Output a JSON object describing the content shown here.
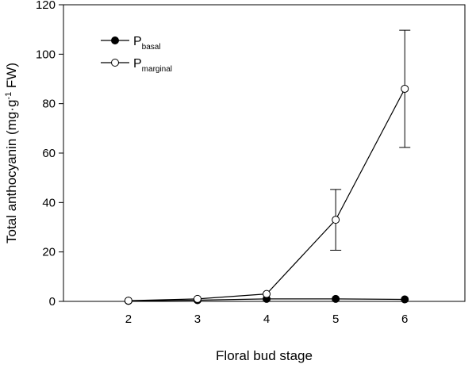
{
  "chart_data": {
    "type": "line",
    "xlabel": "Floral bud stage",
    "ylabel": [
      "Total anthocyanin (mg·g",
      "-1",
      " FW)"
    ],
    "x": [
      2,
      3,
      4,
      5,
      6
    ],
    "series": [
      {
        "name": "P",
        "subscript": "basal",
        "color": "#000000",
        "marker_fill": "#000000",
        "values": [
          0.2,
          0.5,
          1,
          1,
          0.8
        ],
        "errors": [
          null,
          null,
          null,
          null,
          null
        ]
      },
      {
        "name": "P",
        "subscript": "marginal",
        "color": "#000000",
        "marker_fill": "#ffffff",
        "values": [
          0.3,
          1,
          3,
          33,
          86
        ],
        "errors": [
          null,
          null,
          null,
          12.3,
          23.7
        ]
      }
    ],
    "xlim": [
      1.06,
      6.87
    ],
    "xticks": [
      2,
      3,
      4,
      5,
      6
    ],
    "ylim": [
      0,
      120
    ],
    "yticks": [
      0,
      20,
      40,
      60,
      80,
      100,
      120
    ],
    "grid": false
  }
}
